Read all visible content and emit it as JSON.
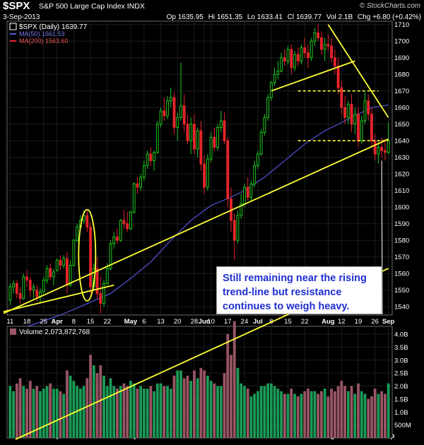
{
  "header": {
    "symbol": "$SPX",
    "name": "S&P 500 Large Cap Index",
    "exchange": "INDX",
    "source": "© StockCharts.com",
    "date": "3-Sep-2013",
    "ohlc": {
      "op_label": "Op",
      "op": "1635.95",
      "hi_label": "Hi",
      "hi": "1651.35",
      "lo_label": "Lo",
      "lo": "1633.41",
      "cl_label": "Cl",
      "cl": "1639.77",
      "vol_label": "Vol",
      "vol": "2.1B",
      "chg_label": "Chg",
      "chg": "+6.80 (+0.42%)"
    }
  },
  "legend": {
    "price": {
      "label": "$SPX (Daily)",
      "value": "1639.77"
    },
    "ma50": {
      "label": "MA(50)",
      "value": "1661.53"
    },
    "ma200": {
      "label": "MA(200)",
      "value": "1563.60"
    }
  },
  "annotation": {
    "lines": [
      "Still remaining  near the rising",
      "trend-line but resistance",
      "continues to weigh heavy."
    ]
  },
  "colors": {
    "up": "#1fc71f",
    "down": "#e6252b",
    "ma50": "#5555dd",
    "ma200": "#e6252b",
    "trend": "#ffff33",
    "vol_up": "#1a9a56",
    "vol_down": "#9a5565"
  },
  "chart_data": {
    "type": "candlestick",
    "price_axis": {
      "min": 1535,
      "max": 1712,
      "ticks": [
        1540,
        1550,
        1560,
        1570,
        1580,
        1590,
        1600,
        1610,
        1620,
        1630,
        1640,
        1650,
        1660,
        1670,
        1680,
        1690,
        1700,
        1710
      ]
    },
    "volume_panel": {
      "label": "Volume",
      "value": "2,073,872,768",
      "ylim": [
        0,
        4300000000
      ],
      "ticks": [
        {
          "v": 500000000,
          "t": "500M"
        },
        {
          "v": 1000000000,
          "t": "1.0B"
        },
        {
          "v": 1500000000,
          "t": "1.5B"
        },
        {
          "v": 2000000000,
          "t": "2.0B"
        },
        {
          "v": 2500000000,
          "t": "2.5B"
        },
        {
          "v": 3000000000,
          "t": "3.0B"
        },
        {
          "v": 3500000000,
          "t": "3.5B"
        },
        {
          "v": 4000000000,
          "t": "4.0B"
        }
      ]
    },
    "x_ticks": [
      {
        "i": 0,
        "t": "11"
      },
      {
        "i": 5,
        "t": "18"
      },
      {
        "i": 10,
        "t": "25"
      },
      {
        "i": 14,
        "t": "Apr"
      },
      {
        "i": 19,
        "t": "8"
      },
      {
        "i": 24,
        "t": "15"
      },
      {
        "i": 29,
        "t": "22"
      },
      {
        "i": 36,
        "t": "May"
      },
      {
        "i": 40,
        "t": "6"
      },
      {
        "i": 45,
        "t": "13"
      },
      {
        "i": 50,
        "t": "20"
      },
      {
        "i": 55,
        "t": "28"
      },
      {
        "i": 58,
        "t": "Jun"
      },
      {
        "i": 60,
        "t": "10"
      },
      {
        "i": 65,
        "t": "17"
      },
      {
        "i": 70,
        "t": "24"
      },
      {
        "i": 74,
        "t": "Jul"
      },
      {
        "i": 78,
        "t": "8"
      },
      {
        "i": 83,
        "t": "15"
      },
      {
        "i": 88,
        "t": "22"
      },
      {
        "i": 95,
        "t": "Aug"
      },
      {
        "i": 99,
        "t": "12"
      },
      {
        "i": 104,
        "t": "19"
      },
      {
        "i": 109,
        "t": "26"
      },
      {
        "i": 113,
        "t": "Sep"
      }
    ],
    "bars": [
      [
        1544,
        1554,
        1541,
        1552,
        2.0
      ],
      [
        1552,
        1556,
        1548,
        1554,
        1.8
      ],
      [
        1554,
        1556,
        1545,
        1548,
        2.1
      ],
      [
        1548,
        1552,
        1542,
        1545,
        2.3
      ],
      [
        1545,
        1560,
        1544,
        1558,
        2.0
      ],
      [
        1558,
        1562,
        1552,
        1556,
        1.9
      ],
      [
        1556,
        1558,
        1546,
        1550,
        2.2
      ],
      [
        1550,
        1554,
        1545,
        1552,
        1.9
      ],
      [
        1550,
        1553,
        1543,
        1546,
        2.0
      ],
      [
        1546,
        1551,
        1542,
        1549,
        1.8
      ],
      [
        1549,
        1558,
        1548,
        1556,
        1.9
      ],
      [
        1556,
        1565,
        1554,
        1563,
        2.0
      ],
      [
        1563,
        1566,
        1556,
        1558,
        2.1
      ],
      [
        1558,
        1563,
        1553,
        1561,
        1.9
      ],
      [
        1562,
        1569,
        1561,
        1568,
        1.9
      ],
      [
        1568,
        1571,
        1562,
        1565,
        1.8
      ],
      [
        1565,
        1571,
        1563,
        1569,
        1.7
      ],
      [
        1569,
        1573,
        1548,
        1553,
        2.6
      ],
      [
        1553,
        1568,
        1552,
        1565,
        2.4
      ],
      [
        1565,
        1581,
        1564,
        1580,
        2.2
      ],
      [
        1580,
        1590,
        1579,
        1588,
        2.0
      ],
      [
        1588,
        1595,
        1586,
        1592,
        1.9
      ],
      [
        1592,
        1598,
        1590,
        1595,
        2.0
      ],
      [
        1595,
        1598,
        1585,
        1588,
        2.3
      ],
      [
        1588,
        1591,
        1548,
        1552,
        3.2
      ],
      [
        1552,
        1566,
        1550,
        1563,
        2.8
      ],
      [
        1563,
        1570,
        1545,
        1548,
        2.5
      ],
      [
        1548,
        1558,
        1536,
        1542,
        2.8
      ],
      [
        1542,
        1556,
        1540,
        1554,
        2.4
      ],
      [
        1554,
        1566,
        1553,
        1563,
        2.0
      ],
      [
        1563,
        1580,
        1562,
        1578,
        2.3
      ],
      [
        1578,
        1585,
        1575,
        1582,
        2.0
      ],
      [
        1582,
        1587,
        1578,
        1580,
        1.9
      ],
      [
        1580,
        1593,
        1579,
        1592,
        2.0
      ],
      [
        1592,
        1598,
        1587,
        1590,
        2.1
      ],
      [
        1590,
        1597,
        1585,
        1587,
        2.0
      ],
      [
        1587,
        1598,
        1586,
        1597,
        2.2
      ],
      [
        1597,
        1615,
        1596,
        1614,
        2.1
      ],
      [
        1614,
        1618,
        1608,
        1612,
        1.9
      ],
      [
        1612,
        1620,
        1610,
        1618,
        2.0
      ],
      [
        1618,
        1628,
        1616,
        1625,
        1.9
      ],
      [
        1625,
        1634,
        1623,
        1632,
        1.9
      ],
      [
        1632,
        1636,
        1625,
        1628,
        2.0
      ],
      [
        1628,
        1634,
        1622,
        1633,
        1.8
      ],
      [
        1633,
        1652,
        1632,
        1650,
        2.1
      ],
      [
        1650,
        1660,
        1648,
        1658,
        2.1
      ],
      [
        1658,
        1666,
        1652,
        1655,
        2.0
      ],
      [
        1655,
        1667,
        1653,
        1664,
        2.0
      ],
      [
        1664,
        1672,
        1660,
        1666,
        1.9
      ],
      [
        1666,
        1669,
        1644,
        1648,
        2.4
      ],
      [
        1648,
        1657,
        1640,
        1654,
        2.6
      ],
      [
        1654,
        1687,
        1652,
        1661,
        2.6
      ],
      [
        1661,
        1668,
        1645,
        1650,
        2.3
      ],
      [
        1650,
        1656,
        1638,
        1640,
        2.4
      ],
      [
        1640,
        1654,
        1632,
        1650,
        2.2
      ],
      [
        1650,
        1656,
        1632,
        1635,
        2.6
      ],
      [
        1635,
        1648,
        1630,
        1646,
        2.3
      ],
      [
        1646,
        1652,
        1622,
        1626,
        2.7
      ],
      [
        1626,
        1631,
        1608,
        1612,
        2.6
      ],
      [
        1612,
        1632,
        1610,
        1629,
        2.4
      ],
      [
        1629,
        1645,
        1627,
        1642,
        2.2
      ],
      [
        1642,
        1648,
        1634,
        1636,
        2.1
      ],
      [
        1636,
        1650,
        1634,
        1648,
        2.0
      ],
      [
        1648,
        1658,
        1645,
        1652,
        2.0
      ],
      [
        1652,
        1657,
        1638,
        1640,
        2.5
      ],
      [
        1640,
        1642,
        1600,
        1605,
        4.0
      ],
      [
        1605,
        1612,
        1585,
        1592,
        3.2
      ],
      [
        1592,
        1596,
        1568,
        1580,
        4.5
      ],
      [
        1580,
        1598,
        1578,
        1595,
        2.7
      ],
      [
        1595,
        1608,
        1593,
        1602,
        2.1
      ],
      [
        1602,
        1614,
        1600,
        1612,
        2.0
      ],
      [
        1612,
        1618,
        1604,
        1606,
        1.9
      ],
      [
        1606,
        1616,
        1604,
        1614,
        1.6
      ],
      [
        1614,
        1628,
        1612,
        1625,
        1.7
      ],
      [
        1625,
        1634,
        1623,
        1632,
        1.8
      ],
      [
        1632,
        1647,
        1631,
        1645,
        2.0
      ],
      [
        1645,
        1656,
        1643,
        1654,
        2.0
      ],
      [
        1654,
        1668,
        1652,
        1666,
        2.1
      ],
      [
        1666,
        1676,
        1664,
        1675,
        2.1
      ],
      [
        1675,
        1684,
        1673,
        1680,
        2.0
      ],
      [
        1680,
        1688,
        1677,
        1682,
        1.9
      ],
      [
        1682,
        1693,
        1681,
        1690,
        1.8
      ],
      [
        1690,
        1695,
        1685,
        1688,
        1.7
      ],
      [
        1688,
        1697,
        1686,
        1695,
        1.7
      ],
      [
        1695,
        1698,
        1680,
        1684,
        1.9
      ],
      [
        1684,
        1694,
        1682,
        1692,
        1.7
      ],
      [
        1692,
        1696,
        1685,
        1688,
        1.6
      ],
      [
        1688,
        1698,
        1686,
        1696,
        1.7
      ],
      [
        1696,
        1702,
        1690,
        1693,
        1.8
      ],
      [
        1693,
        1698,
        1684,
        1690,
        1.9
      ],
      [
        1690,
        1702,
        1688,
        1700,
        1.8
      ],
      [
        1700,
        1708,
        1697,
        1705,
        1.8
      ],
      [
        1705,
        1710,
        1700,
        1702,
        1.7
      ],
      [
        1702,
        1706,
        1692,
        1695,
        1.8
      ],
      [
        1695,
        1702,
        1688,
        1698,
        1.9
      ],
      [
        1698,
        1704,
        1694,
        1697,
        1.6
      ],
      [
        1697,
        1702,
        1687,
        1690,
        1.9
      ],
      [
        1690,
        1695,
        1680,
        1685,
        1.8
      ],
      [
        1685,
        1690,
        1668,
        1672,
        2.0
      ],
      [
        1672,
        1676,
        1656,
        1660,
        2.2
      ],
      [
        1660,
        1667,
        1650,
        1654,
        2.0
      ],
      [
        1654,
        1664,
        1650,
        1662,
        1.8
      ],
      [
        1662,
        1668,
        1645,
        1650,
        2.0
      ],
      [
        1650,
        1660,
        1644,
        1656,
        1.7
      ],
      [
        1656,
        1660,
        1636,
        1640,
        2.1
      ],
      [
        1640,
        1655,
        1638,
        1652,
        1.8
      ],
      [
        1652,
        1669,
        1650,
        1664,
        1.7
      ],
      [
        1664,
        1668,
        1652,
        1656,
        1.5
      ],
      [
        1656,
        1660,
        1636,
        1640,
        1.6
      ],
      [
        1640,
        1644,
        1628,
        1632,
        1.9
      ],
      [
        1632,
        1640,
        1626,
        1636,
        1.7
      ],
      [
        1636,
        1642,
        1630,
        1634,
        1.8
      ],
      [
        1634,
        1641,
        1628,
        1633,
        1.7
      ],
      [
        1633,
        1651,
        1632,
        1640,
        2.1
      ]
    ],
    "ma50": [
      [
        0,
        1525
      ],
      [
        8,
        1530
      ],
      [
        15,
        1535
      ],
      [
        22,
        1541
      ],
      [
        30,
        1548
      ],
      [
        36,
        1557
      ],
      [
        42,
        1567
      ],
      [
        48,
        1580
      ],
      [
        54,
        1592
      ],
      [
        60,
        1601
      ],
      [
        66,
        1606
      ],
      [
        70,
        1610
      ],
      [
        76,
        1618
      ],
      [
        82,
        1628
      ],
      [
        88,
        1638
      ],
      [
        94,
        1646
      ],
      [
        100,
        1652
      ],
      [
        104,
        1656
      ],
      [
        108,
        1660
      ],
      [
        113,
        1661.5
      ]
    ],
    "trendlines": [
      {
        "name": "rising support",
        "from": [
          -2,
          1536
        ],
        "to": [
          113,
          1641
        ]
      },
      {
        "name": "spring support",
        "from": [
          -2,
          1537
        ],
        "to": [
          31,
          1553
        ]
      },
      {
        "name": "summer support",
        "from": [
          78,
          1670
        ],
        "to": [
          103,
          1688
        ]
      },
      {
        "name": "resistance",
        "from": [
          95,
          1710
        ],
        "to": [
          113,
          1654
        ]
      }
    ],
    "levels": [
      {
        "value": 1670,
        "from": 86,
        "to": 110
      },
      {
        "value": 1640,
        "from": 86,
        "to": 113
      }
    ]
  }
}
